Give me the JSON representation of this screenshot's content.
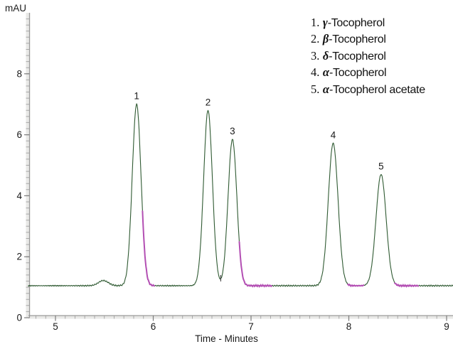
{
  "axes": {
    "y_label": "mAU",
    "x_label": "Time - Minutes",
    "y_ticks": [
      0,
      2,
      4,
      6,
      8
    ],
    "x_ticks": [
      5,
      6,
      7,
      8,
      9
    ]
  },
  "legend": {
    "items": [
      {
        "num": "1.",
        "greek": "γ",
        "name": "-Tocopherol"
      },
      {
        "num": "2.",
        "greek": "β",
        "name": "-Tocopherol"
      },
      {
        "num": "3.",
        "greek": "δ",
        "name": "-Tocopherol"
      },
      {
        "num": "4.",
        "greek": "α",
        "name": "-Tocopherol"
      },
      {
        "num": "5.",
        "greek": "α",
        "name": "-Tocopherol acetate"
      }
    ]
  },
  "chart_data": {
    "type": "line",
    "title": "",
    "xlabel": "Time - Minutes",
    "ylabel": "mAU",
    "xlim": [
      4.72,
      9.07
    ],
    "ylim": [
      0,
      10
    ],
    "x_ticks": [
      5,
      6,
      7,
      8,
      9
    ],
    "y_ticks": [
      0,
      2,
      4,
      6,
      8
    ],
    "x_minor_step": 0.1,
    "y_minor_step": 0.2,
    "grid": false,
    "legend_position": "top-right",
    "baseline_mAU": 1.05,
    "peaks": [
      {
        "label": "1",
        "compound": "gamma-Tocopherol",
        "rt_min": 5.83,
        "apex_mAU": 7.0,
        "sigma_min": 0.045
      },
      {
        "label": "2",
        "compound": "beta-Tocopherol",
        "rt_min": 6.56,
        "apex_mAU": 6.8,
        "sigma_min": 0.045
      },
      {
        "label": "3",
        "compound": "delta-Tocopherol",
        "rt_min": 6.81,
        "apex_mAU": 5.85,
        "sigma_min": 0.045
      },
      {
        "label": "4",
        "compound": "alpha-Tocopherol",
        "rt_min": 7.84,
        "apex_mAU": 5.72,
        "sigma_min": 0.05
      },
      {
        "label": "5",
        "compound": "alpha-Tocopherol acetate",
        "rt_min": 8.33,
        "apex_mAU": 4.7,
        "sigma_min": 0.052
      }
    ],
    "artifact_bump": {
      "rt_min": 5.49,
      "apex_mAU": 1.22,
      "sigma_min": 0.05
    },
    "integration_marks": [
      {
        "t_start": 5.89,
        "t_end": 6.01
      },
      {
        "t_start": 6.88,
        "t_end": 7.21
      },
      {
        "t_start": 7.99,
        "t_end": 8.15
      },
      {
        "t_start": 8.47,
        "t_end": 8.71
      }
    ],
    "valley_tick": {
      "t": 6.69,
      "v_bottom": 1.19,
      "v_top": 1.4
    },
    "colors": {
      "trace": "#2f5a32",
      "marks": "#b34fb3",
      "axis_line": "#9a9a9a",
      "axis_band": "#e9e9e7",
      "minor_tick": "#a8a8a8",
      "major_tick": "#7d7d7d",
      "text": "#1a1a1a",
      "background": "#ffffff"
    }
  }
}
